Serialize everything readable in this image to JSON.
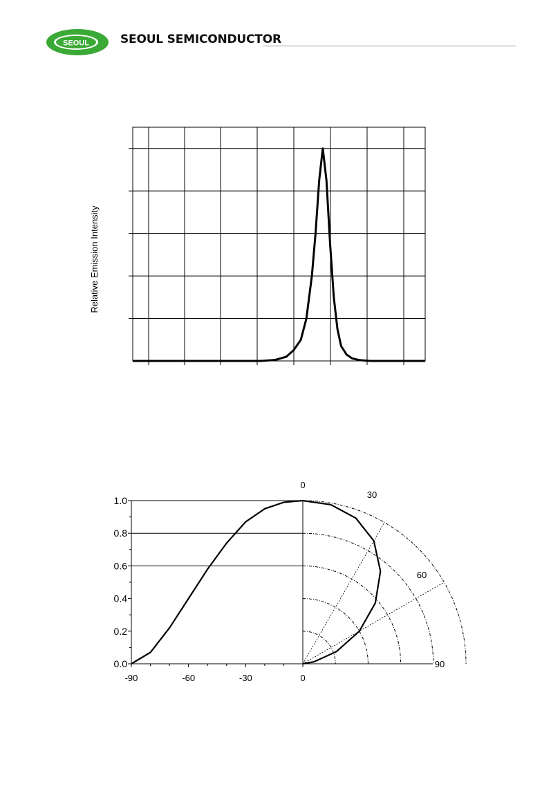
{
  "header": {
    "logo_text": "SEOUL",
    "company": "SEOUL SEMICONDUCTOR",
    "logo_color": "#3aa935"
  },
  "chart_data": [
    {
      "type": "line",
      "title": "",
      "xlabel": "",
      "ylabel": "Relative Emission Intensity",
      "ylim": [
        0,
        1.1
      ],
      "grid": true,
      "peak": {
        "x": 5.2,
        "y": 1.0
      },
      "series": [
        {
          "x": [
            0,
            3.5,
            3.9,
            4.2,
            4.4,
            4.6,
            4.75,
            4.9,
            5.0,
            5.1,
            5.2,
            5.3,
            5.4,
            5.5,
            5.6,
            5.7,
            5.85,
            6.0,
            6.2,
            6.5,
            8.0
          ],
          "y": [
            0,
            0,
            0.005,
            0.02,
            0.05,
            0.1,
            0.2,
            0.4,
            0.6,
            0.85,
            1.0,
            0.85,
            0.55,
            0.3,
            0.15,
            0.07,
            0.03,
            0.012,
            0.004,
            0,
            0
          ]
        }
      ]
    },
    {
      "type": "line",
      "title": "",
      "xlabel": "",
      "ylabel": "",
      "xlim": [
        -90,
        0
      ],
      "ylim": [
        0,
        1.0
      ],
      "x_ticks": [
        "-90",
        "-60",
        "-30",
        "0"
      ],
      "y_ticks": [
        "0.0",
        "0.2",
        "0.4",
        "0.6",
        "0.8",
        "1.0"
      ],
      "polar_angle_labels": [
        "0",
        "30",
        "60",
        "90"
      ],
      "polar_grid_radii": [
        0.2,
        0.4,
        0.6,
        0.8,
        1.0
      ],
      "series": [
        {
          "x": [
            -90,
            -80,
            -70,
            -60,
            -50,
            -40,
            -30,
            -20,
            -10,
            0
          ],
          "y": [
            0.0,
            0.07,
            0.22,
            0.4,
            0.58,
            0.74,
            0.87,
            0.95,
            0.99,
            1.0
          ]
        }
      ]
    }
  ]
}
